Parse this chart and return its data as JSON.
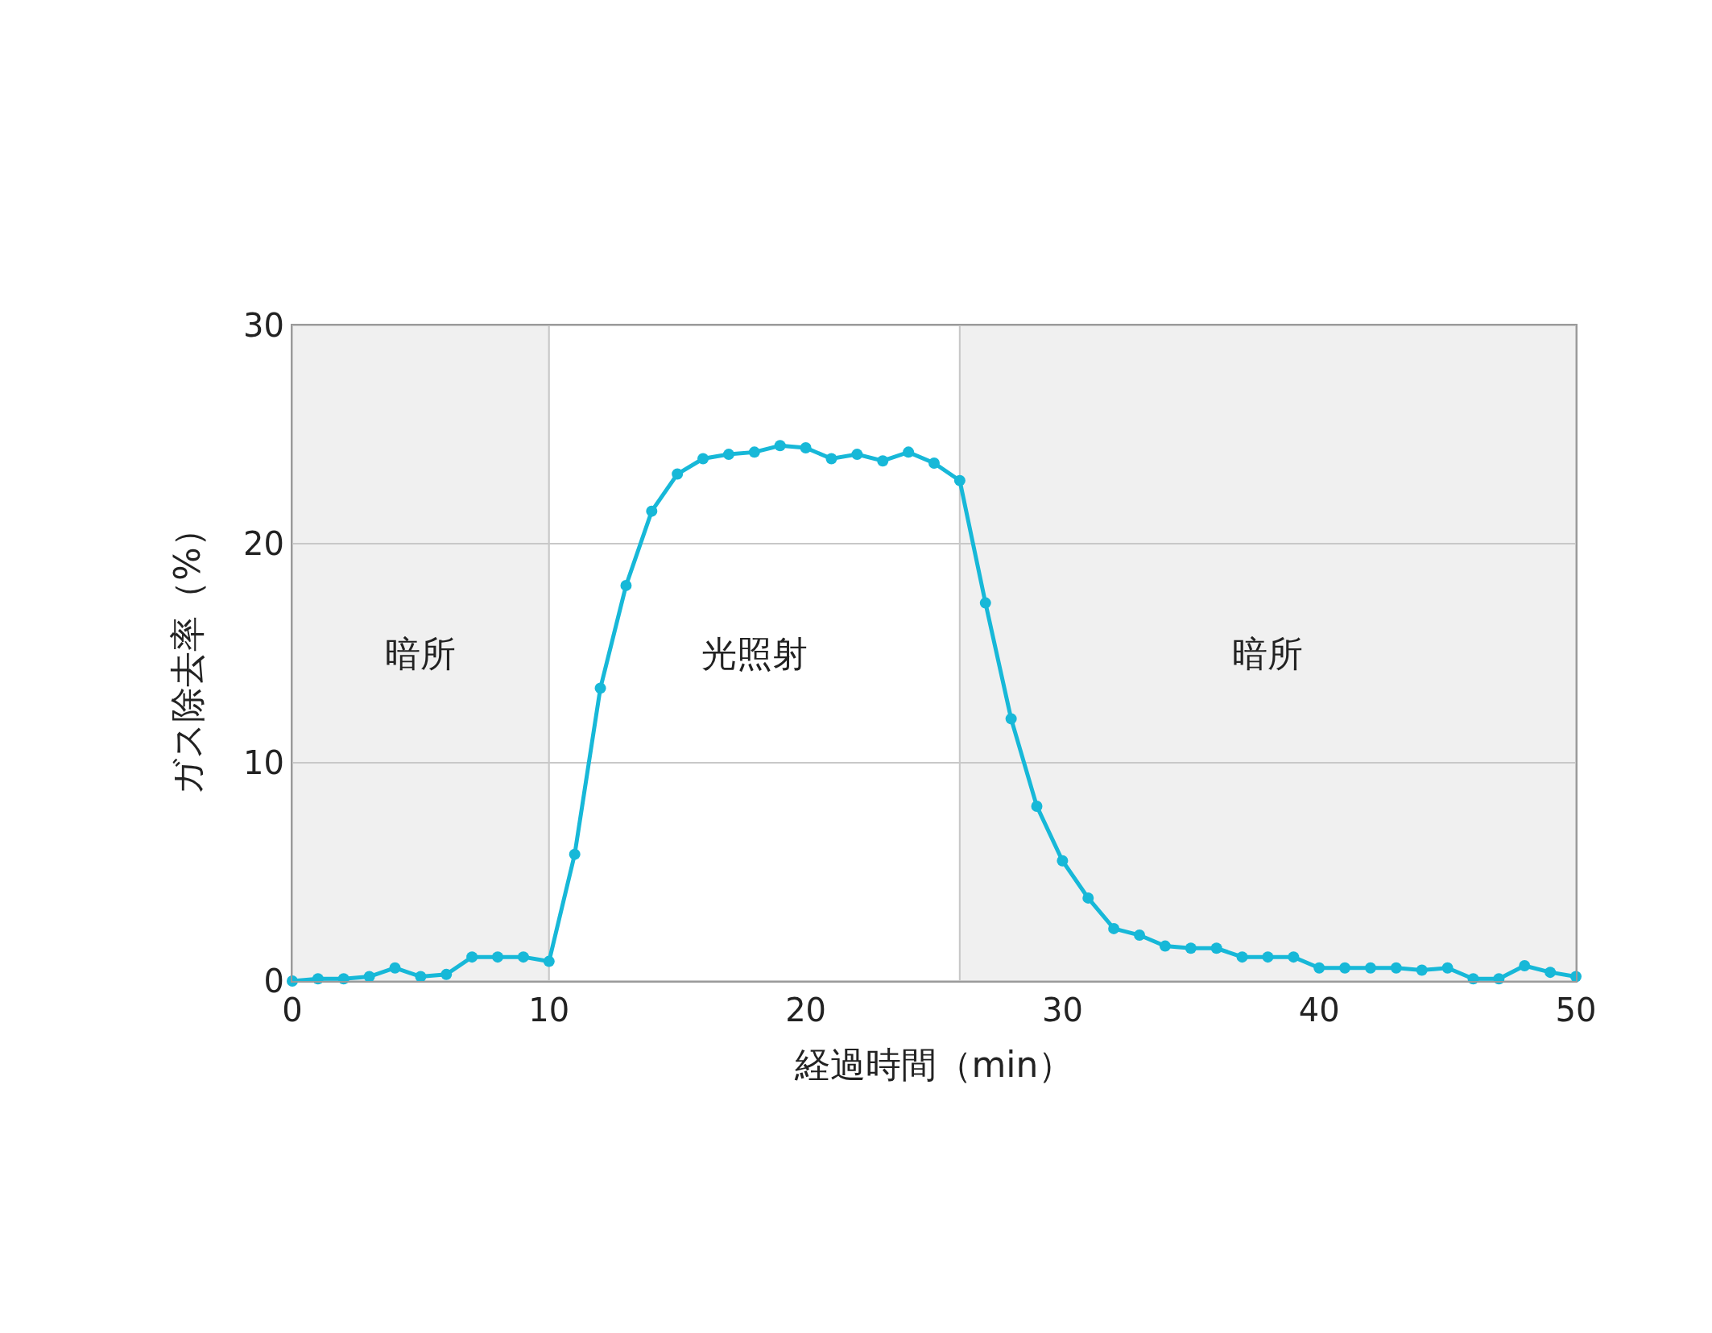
{
  "chart_data": {
    "type": "line",
    "xlabel": "経過時間（min）",
    "ylabel": "ガス除去率（%）",
    "x": [
      0,
      1,
      2,
      3,
      4,
      5,
      6,
      7,
      8,
      9,
      10,
      11,
      12,
      13,
      14,
      15,
      16,
      17,
      18,
      19,
      20,
      21,
      22,
      23,
      24,
      25,
      26,
      27,
      28,
      29,
      30,
      31,
      32,
      33,
      34,
      35,
      36,
      37,
      38,
      39,
      40,
      41,
      42,
      43,
      44,
      45,
      46,
      47,
      48,
      49,
      50
    ],
    "series": [
      {
        "color": "#17b8d8",
        "values": [
          0.0,
          0.1,
          0.1,
          0.2,
          0.6,
          0.2,
          0.3,
          1.1,
          1.1,
          1.1,
          0.9,
          5.8,
          13.4,
          18.1,
          21.5,
          23.2,
          23.9,
          24.1,
          24.2,
          24.5,
          24.4,
          23.9,
          24.1,
          23.8,
          24.2,
          23.7,
          22.9,
          17.3,
          12.0,
          8.0,
          5.5,
          3.8,
          2.4,
          2.1,
          1.6,
          1.5,
          1.5,
          1.1,
          1.1,
          1.1,
          0.6,
          0.6,
          0.6,
          0.6,
          0.5,
          0.6,
          0.1,
          0.1,
          0.7,
          0.4,
          0.2
        ]
      }
    ],
    "xlim": [
      0,
      50
    ],
    "xticks": [
      0,
      10,
      20,
      30,
      40,
      50
    ],
    "ylim": [
      0,
      30
    ],
    "yticks": [
      0,
      10,
      20,
      30
    ],
    "bands": [
      {
        "axis": "x",
        "from": 0,
        "to": 10,
        "label": "暗所",
        "color": "#f0f0f0"
      },
      {
        "axis": "x",
        "from": 10,
        "to": 26,
        "label": "光照射",
        "color": "#ffffff"
      },
      {
        "axis": "x",
        "from": 26,
        "to": 50,
        "label": "暗所",
        "color": "#f0f0f0"
      }
    ],
    "grid": "y",
    "marker": "circle",
    "line_style": "solid"
  }
}
